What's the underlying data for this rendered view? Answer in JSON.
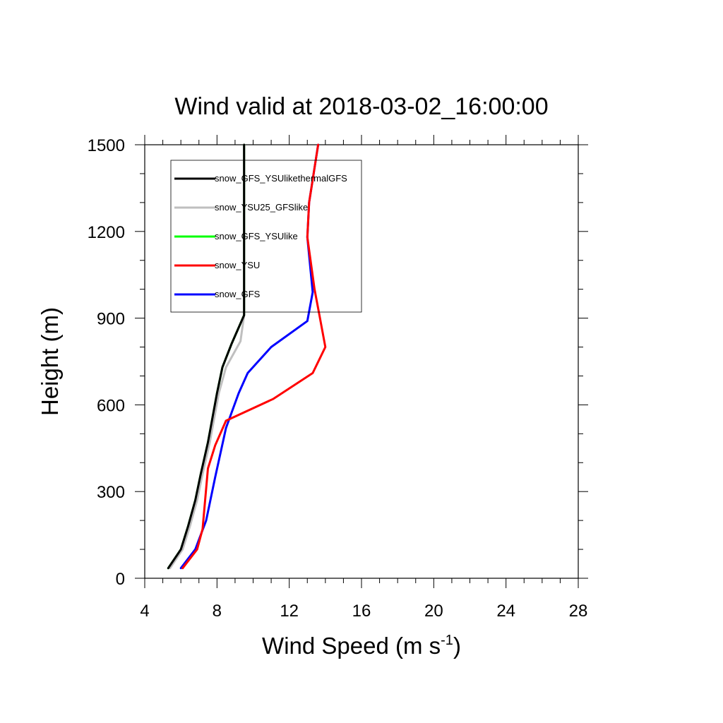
{
  "chart_data": {
    "type": "line",
    "title": "Wind valid at 2018-03-02_16:00:00",
    "xlabel": "Wind Speed (m s",
    "xlabel_sup": "-1",
    "xlabel_close": ")",
    "ylabel": "Height (m)",
    "xlim": [
      4,
      28
    ],
    "ylim": [
      0,
      1500
    ],
    "xticks": [
      4,
      8,
      12,
      16,
      20,
      24,
      28
    ],
    "yticks": [
      0,
      300,
      600,
      900,
      1200,
      1500
    ],
    "grid": false,
    "legend_position": "top-left",
    "series": [
      {
        "name": "snow_GFS_YSUlikethermalGFS",
        "color": "#000000",
        "points": [
          [
            5.3,
            35
          ],
          [
            6.0,
            100
          ],
          [
            6.4,
            180
          ],
          [
            6.8,
            270
          ],
          [
            7.1,
            360
          ],
          [
            7.5,
            470
          ],
          [
            8.0,
            640
          ],
          [
            8.3,
            730
          ],
          [
            8.8,
            810
          ],
          [
            9.5,
            910
          ],
          [
            9.5,
            1000
          ],
          [
            9.5,
            1200
          ],
          [
            9.5,
            1500
          ]
        ]
      },
      {
        "name": "snow_YSU25_GFSlike",
        "color": "#bfbfbf",
        "points": [
          [
            5.4,
            35
          ],
          [
            6.1,
            100
          ],
          [
            6.5,
            180
          ],
          [
            6.9,
            270
          ],
          [
            7.2,
            360
          ],
          [
            7.6,
            470
          ],
          [
            8.1,
            640
          ],
          [
            8.5,
            730
          ],
          [
            9.3,
            820
          ],
          [
            9.5,
            910
          ],
          [
            9.5,
            1000
          ],
          [
            9.5,
            1200
          ],
          [
            9.5,
            1500
          ]
        ]
      },
      {
        "name": "snow_GFS_YSUlike",
        "color": "#00ff00",
        "points": [
          [
            5.3,
            35
          ],
          [
            6.0,
            100
          ],
          [
            6.4,
            180
          ],
          [
            6.8,
            270
          ],
          [
            7.1,
            360
          ],
          [
            7.5,
            470
          ],
          [
            8.0,
            640
          ],
          [
            8.3,
            730
          ],
          [
            8.8,
            810
          ],
          [
            9.5,
            910
          ],
          [
            9.5,
            1000
          ],
          [
            9.5,
            1200
          ],
          [
            9.5,
            1500
          ]
        ]
      },
      {
        "name": "snow_YSU",
        "color": "#ff0000",
        "points": [
          [
            6.1,
            35
          ],
          [
            6.9,
            100
          ],
          [
            7.2,
            170
          ],
          [
            7.5,
            380
          ],
          [
            7.9,
            460
          ],
          [
            8.5,
            545
          ],
          [
            11.1,
            620
          ],
          [
            13.3,
            710
          ],
          [
            14.0,
            800
          ],
          [
            13.7,
            900
          ],
          [
            13.4,
            1000
          ],
          [
            13.0,
            1180
          ],
          [
            13.1,
            1300
          ],
          [
            13.6,
            1500
          ]
        ]
      },
      {
        "name": "snow_GFS",
        "color": "#0000ff",
        "points": [
          [
            6.0,
            35
          ],
          [
            6.8,
            100
          ],
          [
            7.4,
            200
          ],
          [
            7.9,
            350
          ],
          [
            8.5,
            520
          ],
          [
            9.2,
            640
          ],
          [
            9.7,
            710
          ],
          [
            11.0,
            800
          ],
          [
            13.0,
            890
          ],
          [
            13.3,
            990
          ],
          [
            13.0,
            1180
          ],
          [
            13.1,
            1300
          ],
          [
            13.6,
            1500
          ]
        ]
      }
    ]
  }
}
